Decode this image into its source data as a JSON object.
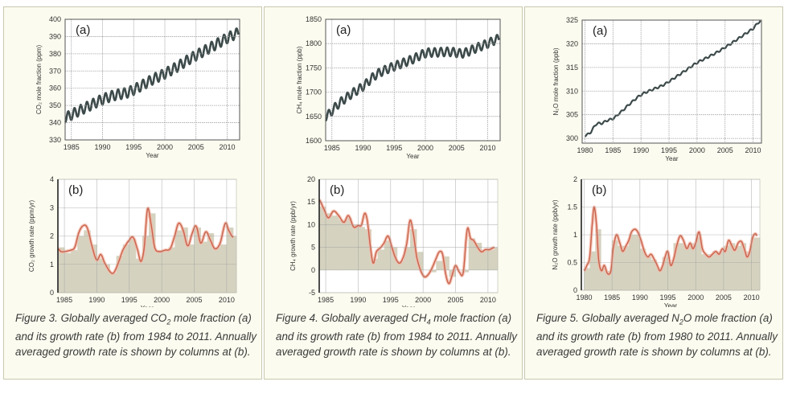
{
  "chart_data": [
    {
      "id": "co2-a",
      "type": "line",
      "panel_label": "(a)",
      "xlabel": "Year",
      "ylabel": "CO₂ mole fraction (ppm)",
      "xlim": [
        1984,
        2012
      ],
      "ylim": [
        330,
        400
      ],
      "xticks": [
        1985,
        1990,
        1995,
        2000,
        2005,
        2010
      ],
      "yticks": [
        330,
        340,
        350,
        360,
        370,
        380,
        390,
        400
      ],
      "grid": true,
      "series": [
        {
          "name": "CO2",
          "seasonal_amplitude": 3,
          "x": [
            1984,
            1986,
            1988,
            1990,
            1992,
            1994,
            1996,
            1998,
            2000,
            2002,
            2004,
            2006,
            2008,
            2010,
            2011.8
          ],
          "values": [
            343,
            346.5,
            350,
            353.5,
            356,
            357.5,
            361,
            365,
            368.5,
            372.5,
            377,
            381,
            385,
            389,
            392
          ]
        }
      ]
    },
    {
      "id": "co2-b",
      "type": "area",
      "panel_label": "(b)",
      "xlabel": "Year",
      "ylabel": "CO₂ growth rate (ppm/yr)",
      "xlim": [
        1984,
        2011.5
      ],
      "ylim": [
        0,
        4
      ],
      "xticks": [
        1985,
        1990,
        1995,
        2000,
        2005,
        2010
      ],
      "yticks": [
        0,
        1,
        2,
        3,
        4
      ],
      "grid": true,
      "annual_columns": {
        "years": [
          1984,
          1985,
          1986,
          1987,
          1988,
          1989,
          1990,
          1991,
          1992,
          1993,
          1994,
          1995,
          1996,
          1997,
          1998,
          1999,
          2000,
          2001,
          2002,
          2003,
          2004,
          2005,
          2006,
          2007,
          2008,
          2009,
          2010,
          2011
        ],
        "values": [
          1.6,
          1.4,
          1.5,
          2.0,
          2.2,
          1.7,
          1.2,
          1.0,
          0.7,
          1.3,
          1.7,
          1.9,
          1.2,
          2.0,
          2.8,
          1.5,
          1.5,
          1.6,
          2.2,
          2.3,
          1.7,
          2.3,
          1.8,
          2.1,
          1.6,
          1.7,
          2.3,
          2.0
        ]
      },
      "series": [
        {
          "name": "growth rate",
          "x": [
            1984,
            1984.5,
            1985,
            1986,
            1986.6,
            1987.2,
            1987.8,
            1988.5,
            1989.3,
            1990,
            1990.6,
            1991.2,
            1992,
            1992.6,
            1993.3,
            1994,
            1995,
            1995.6,
            1996.3,
            1996.8,
            1997.3,
            1997.8,
            1998.3,
            1998.9,
            1999.6,
            2000.5,
            2001.3,
            2002,
            2002.6,
            2003.3,
            2004,
            2004.7,
            2005.3,
            2006,
            2006.8,
            2007.5,
            2008.2,
            2009,
            2009.8,
            2010.3,
            2011
          ],
          "values": [
            1.55,
            1.45,
            1.45,
            1.5,
            1.6,
            2.1,
            2.35,
            2.3,
            1.6,
            1.15,
            1.35,
            1.05,
            0.75,
            0.7,
            1.05,
            1.5,
            1.85,
            1.95,
            1.5,
            1.1,
            1.6,
            2.95,
            2.5,
            1.6,
            1.45,
            1.5,
            1.55,
            2.0,
            2.45,
            2.2,
            1.65,
            2.1,
            2.35,
            1.75,
            2.15,
            1.85,
            1.55,
            1.75,
            2.45,
            2.2,
            1.95
          ]
        }
      ]
    },
    {
      "id": "ch4-a",
      "type": "line",
      "panel_label": "(a)",
      "xlabel": "Year",
      "ylabel": "CH₄ mole fraction (ppb)",
      "xlim": [
        1984,
        2012
      ],
      "ylim": [
        1600,
        1850
      ],
      "xticks": [
        1985,
        1990,
        1995,
        2000,
        2005,
        2010
      ],
      "yticks": [
        1600,
        1650,
        1700,
        1750,
        1800,
        1850
      ],
      "grid": true,
      "series": [
        {
          "name": "CH4",
          "seasonal_amplitude": 9,
          "x": [
            1984,
            1986,
            1988,
            1990,
            1992,
            1994,
            1996,
            1998,
            2000,
            2002,
            2004,
            2006,
            2008,
            2010,
            2011.8
          ],
          "values": [
            1650,
            1675,
            1695,
            1712,
            1735,
            1748,
            1758,
            1768,
            1780,
            1782,
            1783,
            1780,
            1790,
            1800,
            1810
          ]
        }
      ]
    },
    {
      "id": "ch4-b",
      "type": "area",
      "panel_label": "(b)",
      "xlabel": "Year",
      "ylabel": "CH₄ growth rate (ppb/yr)",
      "xlim": [
        1984,
        2011.5
      ],
      "ylim": [
        -5,
        20
      ],
      "xticks": [
        1985,
        1990,
        1995,
        2000,
        2005,
        2010
      ],
      "yticks": [
        -5,
        0,
        5,
        10,
        15,
        20
      ],
      "grid": true,
      "annual_columns": {
        "years": [
          1984,
          1985,
          1986,
          1987,
          1988,
          1989,
          1990,
          1991,
          1992,
          1993,
          1994,
          1995,
          1996,
          1997,
          1998,
          1999,
          2000,
          2001,
          2002,
          2003,
          2004,
          2005,
          2006,
          2007,
          2008,
          2009,
          2010,
          2011
        ],
        "values": [
          14,
          12.5,
          12,
          11,
          11.5,
          10,
          9.5,
          9,
          2.5,
          4.5,
          6.5,
          5,
          2,
          5,
          9,
          4,
          0,
          -0.5,
          2,
          3,
          -1.5,
          0,
          -0.5,
          7,
          6,
          4.5,
          4.5,
          5
        ]
      },
      "series": [
        {
          "name": "growth rate",
          "x": [
            1984,
            1984.7,
            1985.4,
            1986.2,
            1987,
            1987.8,
            1988.5,
            1989.3,
            1990,
            1990.5,
            1991,
            1991.4,
            1991.8,
            1992.3,
            1992.8,
            1993.5,
            1994,
            1994.6,
            1995.2,
            1995.8,
            1996.4,
            1997,
            1997.5,
            1998,
            1998.5,
            1999,
            1999.6,
            2000.2,
            2000.8,
            2001.4,
            2002,
            2002.5,
            2003,
            2003.5,
            2004,
            2004.5,
            2005,
            2005.6,
            2006.2,
            2006.8,
            2007.3,
            2007.8,
            2008.4,
            2009,
            2009.6,
            2010.2,
            2011
          ],
          "values": [
            15.5,
            13.5,
            11.5,
            13,
            12,
            10.5,
            12,
            9.5,
            9.8,
            9.9,
            12.5,
            11,
            6,
            1.5,
            4,
            5,
            6,
            7.5,
            5,
            2.5,
            1.5,
            3,
            6,
            11,
            8,
            3,
            0,
            -1.5,
            -1,
            0.5,
            2.5,
            4,
            3.5,
            -1,
            -3,
            -1,
            1,
            -0.5,
            -0.5,
            9,
            7,
            6.5,
            5,
            4,
            4.5,
            4.5,
            5
          ]
        }
      ]
    },
    {
      "id": "n2o-a",
      "type": "line",
      "panel_label": "(a)",
      "xlabel": "Year",
      "ylabel": "N₂O mole fraction (ppb)",
      "xlim": [
        1979.5,
        2011.5
      ],
      "ylim": [
        299,
        325
      ],
      "xticks": [
        1980,
        1985,
        1990,
        1995,
        2000,
        2005,
        2010
      ],
      "yticks": [
        300,
        305,
        310,
        315,
        320,
        325
      ],
      "grid": true,
      "series": [
        {
          "name": "N2O",
          "seasonal_amplitude": 0.2,
          "x": [
            1980,
            1981,
            1982,
            1983,
            1984,
            1985,
            1986,
            1988,
            1990,
            1992,
            1994,
            1996,
            1998,
            2000,
            2002,
            2004,
            2006,
            2008,
            2010,
            2011.3
          ],
          "values": [
            300.6,
            301.3,
            303,
            303.2,
            303.8,
            304.2,
            305.2,
            307.3,
            309.2,
            310.3,
            311.3,
            312.8,
            314.4,
            316,
            317.2,
            318.5,
            320,
            321.6,
            323.2,
            324.8
          ]
        }
      ]
    },
    {
      "id": "n2o-b",
      "type": "area",
      "panel_label": "(b)",
      "xlabel": "Year",
      "ylabel": "N₂O growth rate (ppb/yr)",
      "xlim": [
        1979.5,
        2011.5
      ],
      "ylim": [
        0,
        2
      ],
      "xticks": [
        1980,
        1985,
        1990,
        1995,
        2000,
        2005,
        2010
      ],
      "yticks": [
        0,
        0.5,
        1,
        1.5,
        2
      ],
      "grid": true,
      "annual_columns": {
        "years": [
          1980,
          1981,
          1982,
          1983,
          1984,
          1985,
          1986,
          1987,
          1988,
          1989,
          1990,
          1991,
          1992,
          1993,
          1994,
          1995,
          1996,
          1997,
          1998,
          1999,
          2000,
          2001,
          2002,
          2003,
          2004,
          2005,
          2006,
          2007,
          2008,
          2009,
          2010,
          2011
        ],
        "values": [
          0.4,
          0.7,
          1.1,
          0.4,
          0.35,
          0.9,
          0.8,
          0.8,
          1.0,
          1.0,
          0.75,
          0.6,
          0.55,
          0.4,
          0.6,
          0.5,
          0.85,
          0.85,
          0.8,
          0.85,
          0.95,
          0.65,
          0.65,
          0.7,
          0.7,
          0.8,
          0.85,
          0.8,
          0.85,
          0.7,
          0.95,
          0.95
        ]
      },
      "series": [
        {
          "name": "growth rate",
          "x": [
            1980,
            1980.5,
            1981,
            1981.5,
            1981.8,
            1982.2,
            1982.6,
            1983.1,
            1983.6,
            1984.2,
            1984.8,
            1985.2,
            1985.8,
            1986.4,
            1986.9,
            1987.5,
            1988,
            1988.5,
            1989.1,
            1989.6,
            1990.2,
            1990.8,
            1991.4,
            1992,
            1992.6,
            1993.1,
            1993.6,
            1994.1,
            1994.5,
            1995,
            1995.5,
            1996,
            1996.6,
            1997.2,
            1997.8,
            1998.4,
            1999,
            1999.5,
            2000,
            2000.6,
            2001.2,
            2001.8,
            2002.4,
            2003,
            2003.6,
            2004.2,
            2004.8,
            2005.3,
            2005.9,
            2006.5,
            2007,
            2007.6,
            2008.2,
            2008.7,
            2009.2,
            2009.7,
            2010.2,
            2010.7,
            2011
          ],
          "values": [
            0.35,
            0.45,
            0.6,
            1.25,
            1.5,
            1.2,
            0.55,
            0.35,
            0.45,
            0.3,
            0.35,
            0.75,
            1.0,
            0.85,
            0.7,
            0.8,
            0.9,
            1.05,
            1.1,
            1.05,
            0.9,
            0.7,
            0.6,
            0.65,
            0.55,
            0.45,
            0.35,
            0.45,
            0.6,
            0.7,
            0.45,
            0.55,
            0.8,
            0.98,
            0.9,
            0.75,
            0.85,
            0.75,
            0.85,
            1.05,
            0.75,
            0.65,
            0.6,
            0.65,
            0.7,
            0.65,
            0.75,
            0.7,
            0.9,
            0.8,
            0.72,
            0.85,
            0.88,
            0.75,
            0.6,
            0.7,
            0.95,
            1.02,
            0.98
          ]
        }
      ]
    }
  ],
  "captions": [
    {
      "lead": "Figure 3. Globally averaged CO",
      "sub": "2",
      "rest": " mole fraction (a) and its growth rate (b) from 1984 to 2011. Annually averaged growth rate is shown by columns at (b)."
    },
    {
      "lead": "Figure 4. Globally averaged CH",
      "sub": "4",
      "rest": " mole fraction (a) and its growth rate (b) from 1984 to 2011. Annually averaged growth rate is shown by columns at (b)."
    },
    {
      "lead": "Figure 5. Globally averaged N",
      "sub": "2",
      "rest": "O mole fraction (a) and its growth rate (b) from 1980 to 2011. Annually averaged growth rate is shown by columns at (b)."
    }
  ],
  "colors": {
    "panel_bg": "#fbfbef",
    "plot_bg": "#ffffff",
    "grid": "#9a9a9a",
    "concentration_line": "#3d4a4a",
    "growth_line": "#c9634c",
    "growth_halo": "#f2b8a8",
    "column_fill": "#d5d3c0",
    "text": "#333333"
  }
}
